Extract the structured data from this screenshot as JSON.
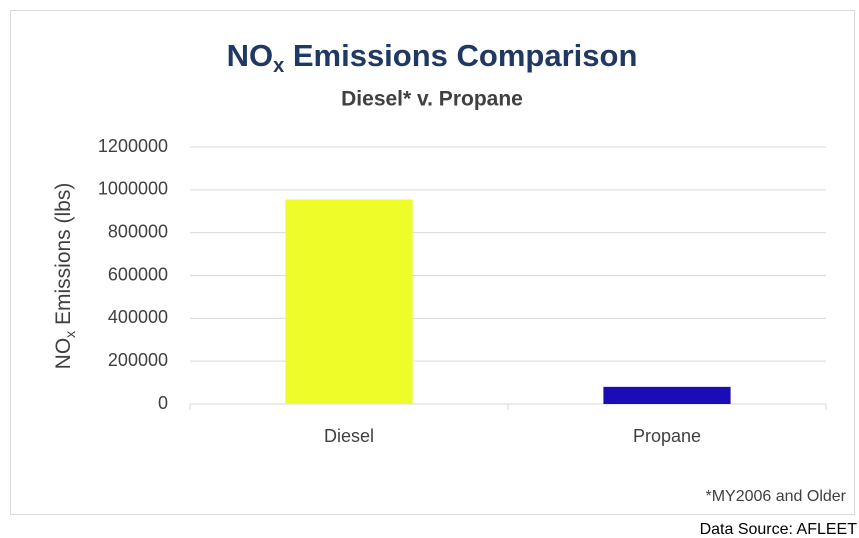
{
  "chart_data": {
    "type": "bar",
    "title": [
      "NO",
      "x",
      " Emissions Comparison"
    ],
    "subtitle": "Diesel* v. Propane",
    "y_label": [
      "NO",
      "x",
      " Emissions (lbs)"
    ],
    "categories": [
      "Diesel",
      "Propane"
    ],
    "values": [
      955000,
      80000
    ],
    "colors": [
      "#eefc2a",
      "#1a0db5"
    ],
    "ylim": [
      0,
      1200000
    ],
    "yticks": [
      0,
      200000,
      400000,
      600000,
      800000,
      1000000,
      1200000
    ],
    "grid": true,
    "footnote": "*MY2006 and Older",
    "source": "Data Source: AFLEET"
  }
}
